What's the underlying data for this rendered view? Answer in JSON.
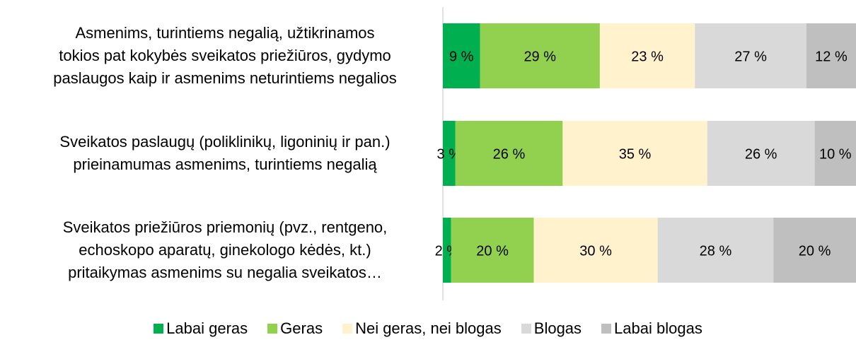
{
  "chart_data": {
    "type": "stacked_barh",
    "categories": [
      "Asmenims, turintiems negalią, užtikrinamos\ntokios pat kokybės sveikatos priežiūros, gydymo\npaslaugos kaip ir asmenims neturintiems negalios",
      "Sveikatos paslaugų (poliklinikų, ligoninių ir pan.)\nprieinamumas asmenims, turintiems negalią",
      "Sveikatos priežiūros priemonių (pvz., rentgeno,\nechoskopo aparatų, ginekologo kėdės, kt.)\npritaikymas asmenims su negalia sveikatos…"
    ],
    "xlim": [
      0,
      100
    ],
    "series": [
      {
        "name": "Labai geras",
        "color": "#00b050",
        "values": [
          9,
          3,
          2
        ],
        "value_labels": [
          "9 %",
          "3 %",
          "2 %"
        ]
      },
      {
        "name": "Geras",
        "color": "#92d050",
        "values": [
          29,
          26,
          20
        ],
        "value_labels": [
          "29 %",
          "26 %",
          "20 %"
        ]
      },
      {
        "name": "Nei geras, nei blogas",
        "color": "#fff2cc",
        "values": [
          23,
          35,
          30
        ],
        "value_labels": [
          "23 %",
          "35 %",
          "30 %"
        ]
      },
      {
        "name": "Blogas",
        "color": "#d9d9d9",
        "values": [
          27,
          26,
          28
        ],
        "value_labels": [
          "27 %",
          "26 %",
          "28 %"
        ]
      },
      {
        "name": "Labai blogas",
        "color": "#bfbfbf",
        "values": [
          12,
          10,
          20
        ],
        "value_labels": [
          "12 %",
          "10 %",
          "20 %"
        ]
      }
    ],
    "legend": "bottom"
  }
}
